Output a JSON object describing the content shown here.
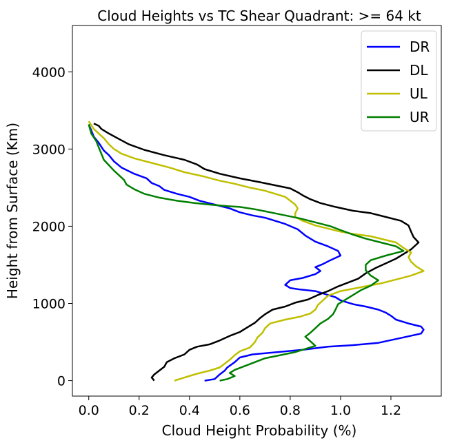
{
  "chart_data": {
    "type": "line",
    "title": "Cloud Heights vs TC Shear Quadrant: >= 64 kt",
    "xlabel": "Cloud Height Probability (%)",
    "ylabel": "Height from Surface (Km)",
    "xlim": [
      -0.065,
      1.4
    ],
    "ylim": [
      -200,
      4600
    ],
    "x_ticks": [
      0.0,
      0.2,
      0.4,
      0.6,
      0.8,
      1.0,
      1.2
    ],
    "x_tick_labels": [
      "0.0",
      "0.2",
      "0.4",
      "0.6",
      "0.8",
      "1.0",
      "1.2"
    ],
    "y_ticks": [
      0,
      1000,
      2000,
      3000,
      4000
    ],
    "y_tick_labels": [
      "0",
      "1000",
      "2000",
      "3000",
      "4000"
    ],
    "grid": false,
    "legend_position": "top-right",
    "series": [
      {
        "name": "DR",
        "color": "#0000ff",
        "points": [
          [
            0.46,
            0
          ],
          [
            0.5,
            20
          ],
          [
            0.52,
            80
          ],
          [
            0.54,
            130
          ],
          [
            0.55,
            170
          ],
          [
            0.58,
            240
          ],
          [
            0.6,
            300
          ],
          [
            0.65,
            340
          ],
          [
            0.75,
            370
          ],
          [
            0.85,
            400
          ],
          [
            0.95,
            440
          ],
          [
            1.05,
            460
          ],
          [
            1.15,
            490
          ],
          [
            1.25,
            560
          ],
          [
            1.32,
            610
          ],
          [
            1.33,
            660
          ],
          [
            1.32,
            700
          ],
          [
            1.27,
            740
          ],
          [
            1.22,
            790
          ],
          [
            1.2,
            840
          ],
          [
            1.18,
            880
          ],
          [
            1.15,
            920
          ],
          [
            1.1,
            960
          ],
          [
            1.05,
            990
          ],
          [
            1.0,
            1040
          ],
          [
            0.98,
            1080
          ],
          [
            0.95,
            1110
          ],
          [
            0.9,
            1160
          ],
          [
            0.84,
            1180
          ],
          [
            0.8,
            1200
          ],
          [
            0.78,
            1240
          ],
          [
            0.8,
            1300
          ],
          [
            0.85,
            1330
          ],
          [
            0.9,
            1380
          ],
          [
            0.92,
            1420
          ],
          [
            0.9,
            1470
          ],
          [
            0.93,
            1510
          ],
          [
            0.96,
            1560
          ],
          [
            1.0,
            1620
          ],
          [
            0.99,
            1680
          ],
          [
            0.95,
            1740
          ],
          [
            0.9,
            1800
          ],
          [
            0.86,
            1880
          ],
          [
            0.83,
            1960
          ],
          [
            0.78,
            2030
          ],
          [
            0.74,
            2070
          ],
          [
            0.7,
            2110
          ],
          [
            0.65,
            2140
          ],
          [
            0.6,
            2180
          ],
          [
            0.56,
            2230
          ],
          [
            0.5,
            2280
          ],
          [
            0.44,
            2330
          ],
          [
            0.4,
            2380
          ],
          [
            0.35,
            2420
          ],
          [
            0.3,
            2470
          ],
          [
            0.28,
            2520
          ],
          [
            0.25,
            2560
          ],
          [
            0.23,
            2620
          ],
          [
            0.18,
            2680
          ],
          [
            0.13,
            2760
          ],
          [
            0.1,
            2840
          ],
          [
            0.08,
            2920
          ],
          [
            0.06,
            2980
          ],
          [
            0.04,
            3080
          ],
          [
            0.02,
            3160
          ],
          [
            0.01,
            3240
          ],
          [
            0.0,
            3320
          ]
        ]
      },
      {
        "name": "DL",
        "color": "#000000",
        "points": [
          [
            0.26,
            0
          ],
          [
            0.25,
            40
          ],
          [
            0.26,
            80
          ],
          [
            0.28,
            130
          ],
          [
            0.3,
            180
          ],
          [
            0.31,
            240
          ],
          [
            0.34,
            290
          ],
          [
            0.38,
            340
          ],
          [
            0.4,
            400
          ],
          [
            0.43,
            440
          ],
          [
            0.48,
            470
          ],
          [
            0.52,
            520
          ],
          [
            0.56,
            580
          ],
          [
            0.6,
            630
          ],
          [
            0.63,
            690
          ],
          [
            0.66,
            750
          ],
          [
            0.68,
            810
          ],
          [
            0.7,
            860
          ],
          [
            0.73,
            920
          ],
          [
            0.78,
            960
          ],
          [
            0.82,
            1010
          ],
          [
            0.87,
            1050
          ],
          [
            0.91,
            1110
          ],
          [
            0.95,
            1160
          ],
          [
            0.99,
            1220
          ],
          [
            1.03,
            1270
          ],
          [
            1.07,
            1320
          ],
          [
            1.1,
            1390
          ],
          [
            1.14,
            1460
          ],
          [
            1.18,
            1520
          ],
          [
            1.22,
            1580
          ],
          [
            1.25,
            1640
          ],
          [
            1.28,
            1700
          ],
          [
            1.31,
            1790
          ],
          [
            1.29,
            1860
          ],
          [
            1.28,
            1930
          ],
          [
            1.27,
            2010
          ],
          [
            1.24,
            2070
          ],
          [
            1.18,
            2120
          ],
          [
            1.12,
            2170
          ],
          [
            1.05,
            2200
          ],
          [
            0.98,
            2250
          ],
          [
            0.92,
            2300
          ],
          [
            0.88,
            2350
          ],
          [
            0.85,
            2400
          ],
          [
            0.83,
            2440
          ],
          [
            0.8,
            2490
          ],
          [
            0.74,
            2530
          ],
          [
            0.68,
            2570
          ],
          [
            0.6,
            2620
          ],
          [
            0.52,
            2680
          ],
          [
            0.46,
            2740
          ],
          [
            0.43,
            2800
          ],
          [
            0.38,
            2860
          ],
          [
            0.3,
            2920
          ],
          [
            0.22,
            2990
          ],
          [
            0.16,
            3060
          ],
          [
            0.12,
            3130
          ],
          [
            0.08,
            3200
          ],
          [
            0.05,
            3260
          ],
          [
            0.04,
            3300
          ],
          [
            0.02,
            3330
          ]
        ]
      },
      {
        "name": "UL",
        "color": "#bfbf00",
        "points": [
          [
            0.34,
            0
          ],
          [
            0.38,
            40
          ],
          [
            0.43,
            90
          ],
          [
            0.48,
            130
          ],
          [
            0.52,
            170
          ],
          [
            0.54,
            220
          ],
          [
            0.56,
            270
          ],
          [
            0.58,
            330
          ],
          [
            0.6,
            380
          ],
          [
            0.64,
            430
          ],
          [
            0.66,
            500
          ],
          [
            0.67,
            560
          ],
          [
            0.69,
            620
          ],
          [
            0.7,
            680
          ],
          [
            0.72,
            740
          ],
          [
            0.78,
            790
          ],
          [
            0.84,
            830
          ],
          [
            0.88,
            870
          ],
          [
            0.9,
            920
          ],
          [
            0.91,
            980
          ],
          [
            0.93,
            1040
          ],
          [
            0.95,
            1100
          ],
          [
            1.0,
            1160
          ],
          [
            1.08,
            1210
          ],
          [
            1.16,
            1260
          ],
          [
            1.22,
            1310
          ],
          [
            1.28,
            1360
          ],
          [
            1.33,
            1420
          ],
          [
            1.3,
            1480
          ],
          [
            1.28,
            1540
          ],
          [
            1.27,
            1600
          ],
          [
            1.28,
            1660
          ],
          [
            1.25,
            1720
          ],
          [
            1.22,
            1790
          ],
          [
            1.17,
            1830
          ],
          [
            1.12,
            1870
          ],
          [
            1.05,
            1900
          ],
          [
            1.0,
            1930
          ],
          [
            0.95,
            1970
          ],
          [
            0.9,
            2010
          ],
          [
            0.85,
            2070
          ],
          [
            0.82,
            2120
          ],
          [
            0.82,
            2170
          ],
          [
            0.83,
            2230
          ],
          [
            0.82,
            2280
          ],
          [
            0.8,
            2330
          ],
          [
            0.78,
            2380
          ],
          [
            0.74,
            2420
          ],
          [
            0.7,
            2460
          ],
          [
            0.64,
            2500
          ],
          [
            0.58,
            2550
          ],
          [
            0.52,
            2590
          ],
          [
            0.45,
            2650
          ],
          [
            0.38,
            2700
          ],
          [
            0.32,
            2760
          ],
          [
            0.25,
            2820
          ],
          [
            0.18,
            2880
          ],
          [
            0.13,
            2940
          ],
          [
            0.1,
            3000
          ],
          [
            0.08,
            3060
          ],
          [
            0.06,
            3140
          ],
          [
            0.04,
            3200
          ],
          [
            0.02,
            3260
          ],
          [
            0.0,
            3360
          ]
        ]
      },
      {
        "name": "UR",
        "color": "#007f00",
        "points": [
          [
            0.52,
            0
          ],
          [
            0.55,
            20
          ],
          [
            0.58,
            60
          ],
          [
            0.56,
            100
          ],
          [
            0.58,
            140
          ],
          [
            0.62,
            190
          ],
          [
            0.66,
            240
          ],
          [
            0.7,
            290
          ],
          [
            0.76,
            330
          ],
          [
            0.82,
            370
          ],
          [
            0.86,
            410
          ],
          [
            0.9,
            450
          ],
          [
            0.88,
            510
          ],
          [
            0.86,
            570
          ],
          [
            0.88,
            620
          ],
          [
            0.9,
            680
          ],
          [
            0.92,
            740
          ],
          [
            0.95,
            800
          ],
          [
            0.97,
            860
          ],
          [
            0.98,
            920
          ],
          [
            0.99,
            990
          ],
          [
            1.02,
            1050
          ],
          [
            1.05,
            1110
          ],
          [
            1.08,
            1170
          ],
          [
            1.12,
            1230
          ],
          [
            1.15,
            1300
          ],
          [
            1.12,
            1360
          ],
          [
            1.1,
            1430
          ],
          [
            1.1,
            1500
          ],
          [
            1.12,
            1560
          ],
          [
            1.18,
            1620
          ],
          [
            1.25,
            1680
          ],
          [
            1.22,
            1740
          ],
          [
            1.16,
            1790
          ],
          [
            1.1,
            1840
          ],
          [
            1.05,
            1890
          ],
          [
            1.0,
            1950
          ],
          [
            0.96,
            2000
          ],
          [
            0.9,
            2050
          ],
          [
            0.84,
            2100
          ],
          [
            0.78,
            2140
          ],
          [
            0.72,
            2180
          ],
          [
            0.66,
            2220
          ],
          [
            0.6,
            2250
          ],
          [
            0.55,
            2260
          ],
          [
            0.48,
            2280
          ],
          [
            0.42,
            2300
          ],
          [
            0.35,
            2330
          ],
          [
            0.28,
            2370
          ],
          [
            0.22,
            2420
          ],
          [
            0.18,
            2480
          ],
          [
            0.15,
            2540
          ],
          [
            0.14,
            2600
          ],
          [
            0.12,
            2660
          ],
          [
            0.1,
            2720
          ],
          [
            0.08,
            2790
          ],
          [
            0.06,
            2860
          ],
          [
            0.05,
            2940
          ],
          [
            0.04,
            3020
          ],
          [
            0.03,
            3100
          ],
          [
            0.01,
            3200
          ],
          [
            0.0,
            3320
          ]
        ]
      }
    ]
  }
}
